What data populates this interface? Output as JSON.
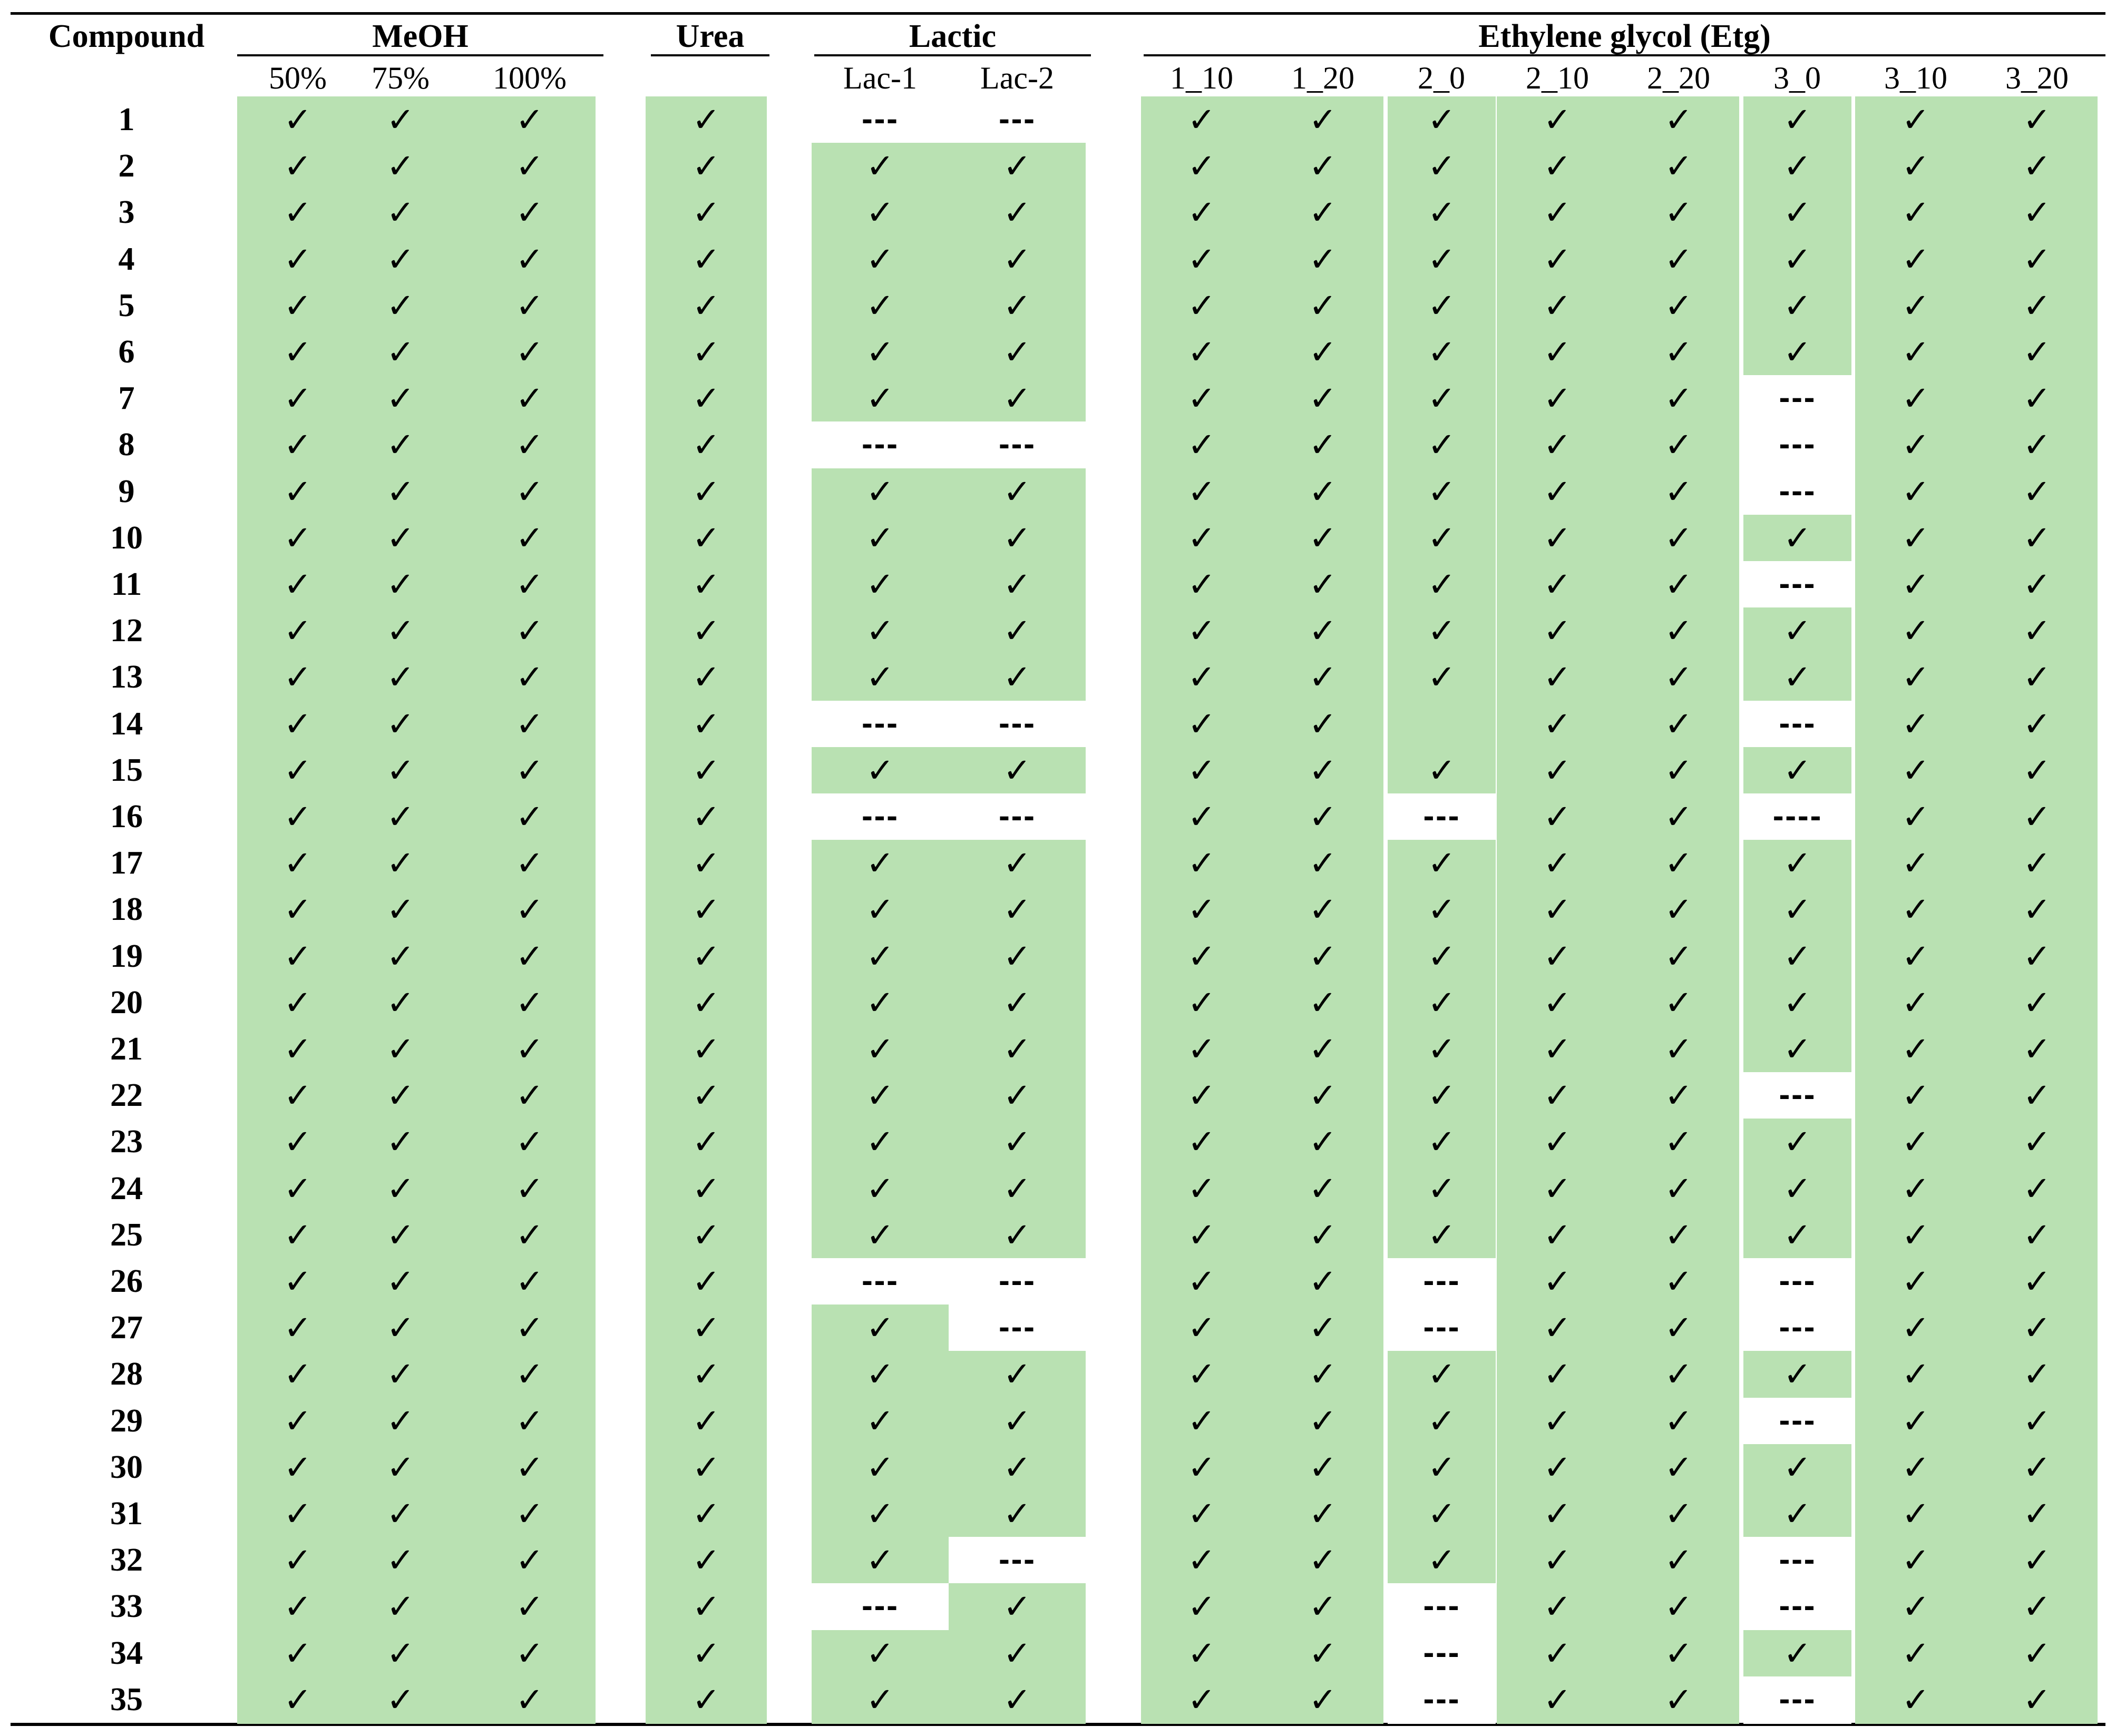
{
  "headers": {
    "compound": "Compound",
    "groups": [
      {
        "label": "MeOH",
        "cols": [
          "50%",
          "75%",
          "100%"
        ]
      },
      {
        "label": "Urea",
        "cols": [
          ""
        ]
      },
      {
        "label": "Lactic",
        "cols": [
          "Lac-1",
          "Lac-2"
        ]
      },
      {
        "label": "Ethylene glycol (Etg)",
        "cols": [
          "1_10",
          "1_20",
          "2_0",
          "2_10",
          "2_20",
          "3_0",
          "3_10",
          "3_20"
        ]
      }
    ]
  },
  "symbols": {
    "check": "✓",
    "dash": "---",
    "long_dash": "----"
  },
  "colors": {
    "soluble_fill": "#b9e1b2",
    "empty_fill": "#ffffff"
  },
  "rows": [
    {
      "compound": "1",
      "cells": [
        "check",
        "check",
        "check",
        "check",
        "dash",
        "dash",
        "check",
        "check",
        "check",
        "check",
        "check",
        "check",
        "check",
        "check"
      ]
    },
    {
      "compound": "2",
      "cells": [
        "check",
        "check",
        "check",
        "check",
        "check",
        "check",
        "check",
        "check",
        "check",
        "check",
        "check",
        "check",
        "check",
        "check"
      ]
    },
    {
      "compound": "3",
      "cells": [
        "check",
        "check",
        "check",
        "check",
        "check",
        "check",
        "check",
        "check",
        "check",
        "check",
        "check",
        "check",
        "check",
        "check"
      ]
    },
    {
      "compound": "4",
      "cells": [
        "check",
        "check",
        "check",
        "check",
        "check",
        "check",
        "check",
        "check",
        "check",
        "check",
        "check",
        "check",
        "check",
        "check"
      ]
    },
    {
      "compound": "5",
      "cells": [
        "check",
        "check",
        "check",
        "check",
        "check",
        "check",
        "check",
        "check",
        "check",
        "check",
        "check",
        "check",
        "check",
        "check"
      ]
    },
    {
      "compound": "6",
      "cells": [
        "check",
        "check",
        "check",
        "check",
        "check",
        "check",
        "check",
        "check",
        "check",
        "check",
        "check",
        "check",
        "check",
        "check"
      ]
    },
    {
      "compound": "7",
      "cells": [
        "check",
        "check",
        "check",
        "check",
        "check",
        "check",
        "check",
        "check",
        "check",
        "check",
        "check",
        "dash",
        "check",
        "check"
      ]
    },
    {
      "compound": "8",
      "cells": [
        "check",
        "check",
        "check",
        "check",
        "dash",
        "dash",
        "check",
        "check",
        "check",
        "check",
        "check",
        "dash",
        "check",
        "check"
      ]
    },
    {
      "compound": "9",
      "cells": [
        "check",
        "check",
        "check",
        "check",
        "check",
        "check",
        "check",
        "check",
        "check",
        "check",
        "check",
        "dash",
        "check",
        "check"
      ]
    },
    {
      "compound": "10",
      "cells": [
        "check",
        "check",
        "check",
        "check",
        "check",
        "check",
        "check",
        "check",
        "check",
        "check",
        "check",
        "check",
        "check",
        "check"
      ]
    },
    {
      "compound": "11",
      "cells": [
        "check",
        "check",
        "check",
        "check",
        "check",
        "check",
        "check",
        "check",
        "check",
        "check",
        "check",
        "dash",
        "check",
        "check"
      ]
    },
    {
      "compound": "12",
      "cells": [
        "check",
        "check",
        "check",
        "check",
        "check",
        "check",
        "check",
        "check",
        "check",
        "check",
        "check",
        "check",
        "check",
        "check"
      ]
    },
    {
      "compound": "13",
      "cells": [
        "check",
        "check",
        "check",
        "check",
        "check",
        "check",
        "check",
        "check",
        "check",
        "check",
        "check",
        "check",
        "check",
        "check"
      ]
    },
    {
      "compound": "14",
      "cells": [
        "check",
        "check",
        "check",
        "check",
        "dash",
        "dash",
        "check",
        "check",
        "empty",
        "check",
        "check",
        "dash",
        "check",
        "check"
      ]
    },
    {
      "compound": "15",
      "cells": [
        "check",
        "check",
        "check",
        "check",
        "check",
        "check",
        "check",
        "check",
        "check",
        "check",
        "check",
        "check",
        "check",
        "check"
      ]
    },
    {
      "compound": "16",
      "cells": [
        "check",
        "check",
        "check",
        "check",
        "dash",
        "dash",
        "check",
        "check",
        "dash",
        "check",
        "check",
        "long_dash",
        "check",
        "check"
      ]
    },
    {
      "compound": "17",
      "cells": [
        "check",
        "check",
        "check",
        "check",
        "check",
        "check",
        "check",
        "check",
        "check",
        "check",
        "check",
        "check",
        "check",
        "check"
      ]
    },
    {
      "compound": "18",
      "cells": [
        "check",
        "check",
        "check",
        "check",
        "check",
        "check",
        "check",
        "check",
        "check",
        "check",
        "check",
        "check",
        "check",
        "check"
      ]
    },
    {
      "compound": "19",
      "cells": [
        "check",
        "check",
        "check",
        "check",
        "check",
        "check",
        "check",
        "check",
        "check",
        "check",
        "check",
        "check",
        "check",
        "check"
      ]
    },
    {
      "compound": "20",
      "cells": [
        "check",
        "check",
        "check",
        "check",
        "check",
        "check",
        "check",
        "check",
        "check",
        "check",
        "check",
        "check",
        "check",
        "check"
      ]
    },
    {
      "compound": "21",
      "cells": [
        "check",
        "check",
        "check",
        "check",
        "check",
        "check",
        "check",
        "check",
        "check",
        "check",
        "check",
        "check",
        "check",
        "check"
      ]
    },
    {
      "compound": "22",
      "cells": [
        "check",
        "check",
        "check",
        "check",
        "check",
        "check",
        "check",
        "check",
        "check",
        "check",
        "check",
        "dash",
        "check",
        "check"
      ]
    },
    {
      "compound": "23",
      "cells": [
        "check",
        "check",
        "check",
        "check",
        "check",
        "check",
        "check",
        "check",
        "check",
        "check",
        "check",
        "check",
        "check",
        "check"
      ]
    },
    {
      "compound": "24",
      "cells": [
        "check",
        "check",
        "check",
        "check",
        "check",
        "check",
        "check",
        "check",
        "check",
        "check",
        "check",
        "check",
        "check",
        "check"
      ]
    },
    {
      "compound": "25",
      "cells": [
        "check",
        "check",
        "check",
        "check",
        "check",
        "check",
        "check",
        "check",
        "check",
        "check",
        "check",
        "check",
        "check",
        "check"
      ]
    },
    {
      "compound": "26",
      "cells": [
        "check",
        "check",
        "check",
        "check",
        "dash",
        "dash",
        "check",
        "check",
        "dash",
        "check",
        "check",
        "dash",
        "check",
        "check"
      ]
    },
    {
      "compound": "27",
      "cells": [
        "check",
        "check",
        "check",
        "check",
        "check",
        "dash",
        "check",
        "check",
        "dash",
        "check",
        "check",
        "dash",
        "check",
        "check"
      ]
    },
    {
      "compound": "28",
      "cells": [
        "check",
        "check",
        "check",
        "check",
        "check",
        "check",
        "check",
        "check",
        "check",
        "check",
        "check",
        "check",
        "check",
        "check"
      ]
    },
    {
      "compound": "29",
      "cells": [
        "check",
        "check",
        "check",
        "check",
        "check",
        "check",
        "check",
        "check",
        "check",
        "check",
        "check",
        "dash",
        "check",
        "check"
      ]
    },
    {
      "compound": "30",
      "cells": [
        "check",
        "check",
        "check",
        "check",
        "check",
        "check",
        "check",
        "check",
        "check",
        "check",
        "check",
        "check",
        "check",
        "check"
      ]
    },
    {
      "compound": "31",
      "cells": [
        "check",
        "check",
        "check",
        "check",
        "check",
        "check",
        "check",
        "check",
        "check",
        "check",
        "check",
        "check",
        "check",
        "check"
      ]
    },
    {
      "compound": "32",
      "cells": [
        "check",
        "check",
        "check",
        "check",
        "check",
        "dash",
        "check",
        "check",
        "check",
        "check",
        "check",
        "dash",
        "check",
        "check"
      ]
    },
    {
      "compound": "33",
      "cells": [
        "check",
        "check",
        "check",
        "check",
        "dash",
        "check",
        "check",
        "check",
        "dash",
        "check",
        "check",
        "dash",
        "check",
        "check"
      ]
    },
    {
      "compound": "34",
      "cells": [
        "check",
        "check",
        "check",
        "check",
        "check",
        "check",
        "check",
        "check",
        "dash",
        "check",
        "check",
        "check",
        "check",
        "check"
      ]
    },
    {
      "compound": "35",
      "cells": [
        "check",
        "check",
        "check",
        "check",
        "check",
        "check",
        "check",
        "check",
        "dash",
        "check",
        "check",
        "dash",
        "check",
        "check"
      ]
    }
  ]
}
